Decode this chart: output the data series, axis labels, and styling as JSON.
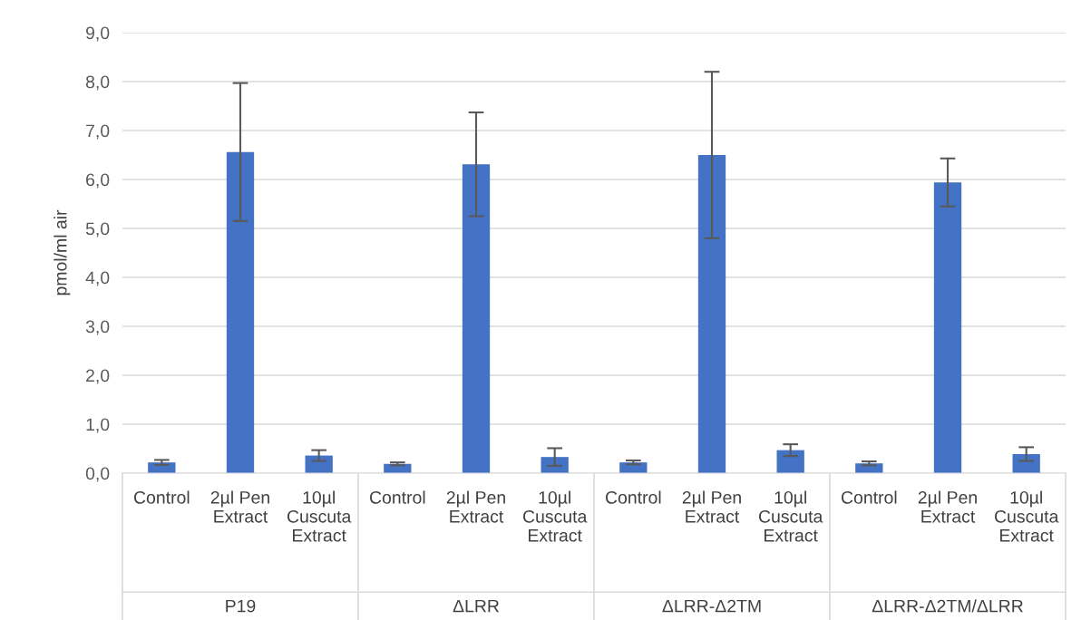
{
  "chart_data": {
    "type": "bar",
    "ylabel": "pmol/ml air",
    "categories": [
      "Control",
      "2µl Pen\nExtract",
      "10µl\nCuscuta\nExtract",
      "Control",
      "2µl Pen\nExtract",
      "10µl\nCuscuta\nExtract",
      "Control",
      "2µl Pen\nExtract",
      "10µl\nCuscuta\nExtract",
      "Control",
      "2µl Pen\nExtract",
      "10µl\nCuscuta\nExtract"
    ],
    "values": [
      0.22,
      6.56,
      0.36,
      0.19,
      6.31,
      0.33,
      0.22,
      6.5,
      0.47,
      0.2,
      5.94,
      0.39
    ],
    "errors": [
      0.05,
      1.41,
      0.11,
      0.03,
      1.06,
      0.18,
      0.04,
      1.7,
      0.12,
      0.04,
      0.49,
      0.14
    ],
    "color": "#4472c4",
    "annotations": [
      "P19",
      "ΔLRR",
      "ΔLRR-Δ2TM",
      "ΔLRR-Δ2TM/ΔLRR"
    ],
    "ylim": [
      0,
      9
    ],
    "yticks": [
      {
        "value": 0,
        "label": "0,0"
      },
      {
        "value": 1,
        "label": "1,0"
      },
      {
        "value": 2,
        "label": "2,0"
      },
      {
        "value": 3,
        "label": "3,0"
      },
      {
        "value": 4,
        "label": "4,0"
      },
      {
        "value": 5,
        "label": "5,0"
      },
      {
        "value": 6,
        "label": "6,0"
      },
      {
        "value": 7,
        "label": "7,0"
      },
      {
        "value": 8,
        "label": "8,0"
      },
      {
        "value": 9,
        "label": "9,0"
      }
    ],
    "grid": "y"
  }
}
